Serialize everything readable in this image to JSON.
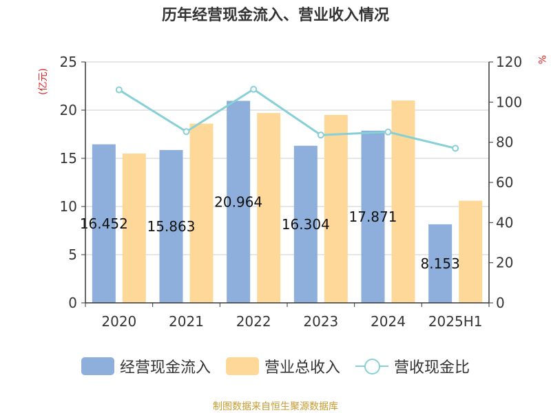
{
  "chart_data": {
    "type": "bar",
    "title": "历年经营现金流入、营业收入情况",
    "categories": [
      "2020",
      "2021",
      "2022",
      "2023",
      "2024",
      "2025H1"
    ],
    "y_left_unit": "(亿元)",
    "y_right_unit": "%",
    "ylim_left": [
      0,
      25
    ],
    "yticks_left": [
      "0",
      "5",
      "10",
      "15",
      "20",
      "25"
    ],
    "ylim_right": [
      0,
      120
    ],
    "yticks_right": [
      "0",
      "20",
      "40",
      "60",
      "80",
      "100",
      "120"
    ],
    "grid": true,
    "legend_position": "bottom",
    "series": [
      {
        "name": "经营现金流入",
        "type": "bar",
        "axis": "left",
        "color": "#8eaedb",
        "values": [
          16.452,
          15.863,
          20.964,
          16.304,
          17.871,
          8.153
        ],
        "data_labels": [
          "16.452",
          "15.863",
          "20.964",
          "16.304",
          "17.871",
          "8.153"
        ]
      },
      {
        "name": "营业总收入",
        "type": "bar",
        "axis": "left",
        "color": "#fed898",
        "values": [
          15.5,
          18.6,
          19.7,
          19.5,
          21.0,
          10.6
        ]
      },
      {
        "name": "营收现金比",
        "type": "line",
        "axis": "right",
        "color": "#86d0d6",
        "values": [
          106.1,
          85.3,
          106.4,
          83.6,
          85.1,
          77.0
        ]
      }
    ]
  },
  "legend": {
    "bar1": "经营现金流入",
    "bar2": "营业总收入",
    "line": "营收现金比"
  },
  "source": "制图数据来自恒生聚源数据库"
}
